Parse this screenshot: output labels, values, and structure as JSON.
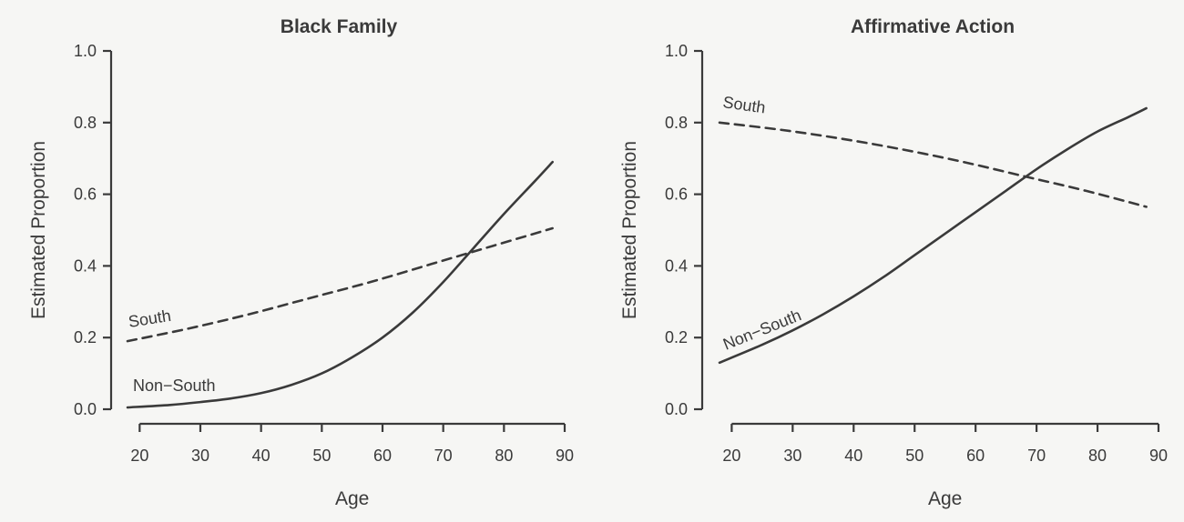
{
  "chart_data": [
    {
      "type": "line",
      "title": "Black Family",
      "xlabel": "Age",
      "ylabel": "Estimated Proportion",
      "xlim": [
        18,
        90
      ],
      "ylim": [
        0,
        1
      ],
      "xticks": [
        20,
        30,
        40,
        50,
        60,
        70,
        80,
        90
      ],
      "yticks": [
        "0.0",
        "0.2",
        "0.4",
        "0.6",
        "0.8",
        "1.0"
      ],
      "grid": false,
      "series": [
        {
          "name": "South",
          "style": "dashed",
          "color": "#3a3a3a",
          "x": [
            18,
            28,
            38,
            48,
            58,
            68,
            78,
            88
          ],
          "y": [
            0.19,
            0.225,
            0.265,
            0.31,
            0.355,
            0.405,
            0.455,
            0.505
          ]
        },
        {
          "name": "Non−South",
          "style": "solid",
          "color": "#3a3a3a",
          "x": [
            18,
            25,
            30,
            35,
            40,
            45,
            50,
            55,
            60,
            65,
            70,
            75,
            80,
            85,
            88
          ],
          "y": [
            0.005,
            0.012,
            0.02,
            0.03,
            0.045,
            0.068,
            0.1,
            0.145,
            0.2,
            0.27,
            0.355,
            0.45,
            0.545,
            0.635,
            0.69
          ]
        }
      ]
    },
    {
      "type": "line",
      "title": "Affirmative Action",
      "xlabel": "Age",
      "ylabel": "Estimated Proportion",
      "xlim": [
        18,
        90
      ],
      "ylim": [
        0,
        1
      ],
      "xticks": [
        20,
        30,
        40,
        50,
        60,
        70,
        80,
        90
      ],
      "yticks": [
        "0.0",
        "0.2",
        "0.4",
        "0.6",
        "0.8",
        "1.0"
      ],
      "grid": false,
      "series": [
        {
          "name": "South",
          "style": "dashed",
          "color": "#3a3a3a",
          "x": [
            18,
            28,
            38,
            48,
            58,
            68,
            78,
            88
          ],
          "y": [
            0.8,
            0.78,
            0.755,
            0.725,
            0.69,
            0.65,
            0.61,
            0.565
          ]
        },
        {
          "name": "Non−South",
          "style": "solid",
          "color": "#3a3a3a",
          "x": [
            18,
            25,
            30,
            35,
            40,
            45,
            50,
            55,
            60,
            65,
            70,
            75,
            80,
            85,
            88
          ],
          "y": [
            0.13,
            0.18,
            0.22,
            0.265,
            0.315,
            0.37,
            0.43,
            0.49,
            0.55,
            0.61,
            0.67,
            0.725,
            0.775,
            0.815,
            0.84
          ]
        }
      ]
    }
  ]
}
